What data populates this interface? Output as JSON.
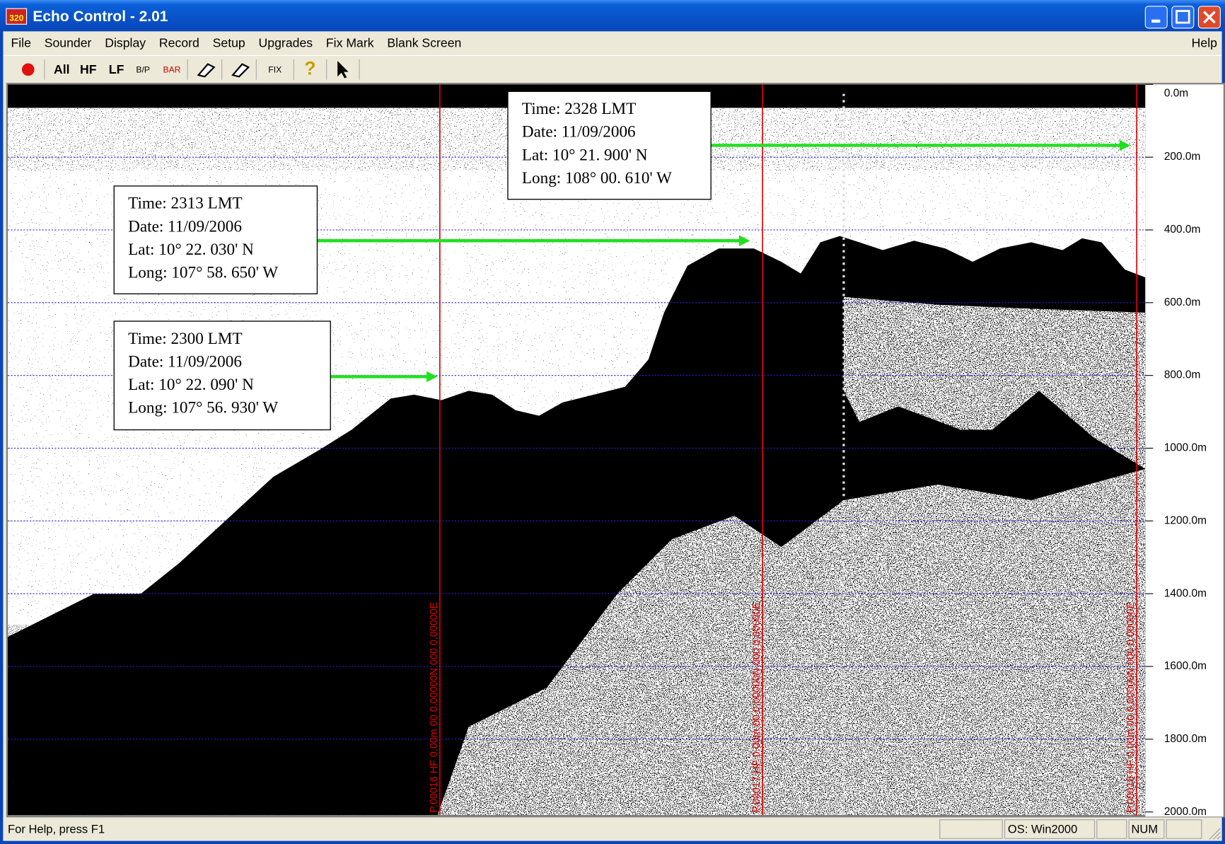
{
  "window": {
    "icon_text": "320",
    "title": "Echo Control - 2.01"
  },
  "menu": [
    "File",
    "Sounder",
    "Display",
    "Record",
    "Setup",
    "Upgrades",
    "Fix Mark",
    "Blank Screen"
  ],
  "help_menu": "Help",
  "toolbar": [
    "All",
    "HF",
    "LF",
    "B/P",
    "BAR",
    "FIX"
  ],
  "depth_scale": [
    "0.0m",
    "200.0m",
    "400.0m",
    "600.0m",
    "800.0m",
    "1000.0m",
    "1200.0m",
    "1400.0m",
    "1600.0m",
    "1800.0m",
    "2000.0m"
  ],
  "annotations": [
    {
      "lines": [
        "Time: 2328 LMT",
        "Date: 11/09/2006",
        "Lat: 10° 21. 900' N",
        "Long: 108° 00. 610' W"
      ]
    },
    {
      "lines": [
        "Time: 2313 LMT",
        "Date: 11/09/2006",
        "Lat: 10° 22. 030' N",
        "Long: 107° 58. 650' W"
      ]
    },
    {
      "lines": [
        "Time: 2300 LMT",
        "Date: 11/09/2006",
        "Lat: 10° 22. 090' N",
        "Long: 107° 56. 930' W"
      ]
    }
  ],
  "fix_marks": [
    "P.00016  HF  0.00m  00 0.00000N  000 0.00000E",
    "P.00017  HF  0.00m  00 0.00000N  000 0.00000E",
    "P.00018  HF  0.00m  00 0.00000N  000 0.00000E"
  ],
  "status": {
    "help": "For Help, press F1",
    "os": "OS: Win2000",
    "num": "NUM"
  }
}
